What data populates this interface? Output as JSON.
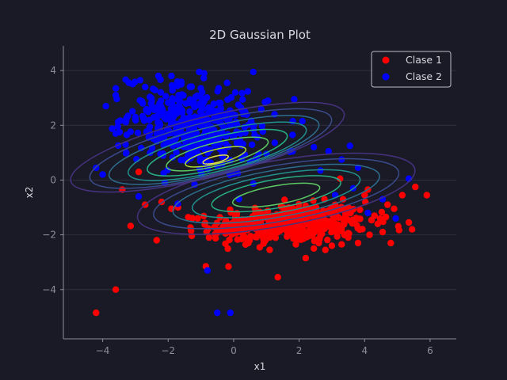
{
  "chart_data": {
    "type": "scatter",
    "title": "2D Gaussian Plot",
    "xlabel": "x1",
    "ylabel": "x2",
    "xlim": [
      -5.2,
      6.8
    ],
    "ylim": [
      -5.8,
      4.9
    ],
    "xticks": [
      -4,
      -2,
      0,
      2,
      4,
      6
    ],
    "yticks": [
      -4,
      -2,
      0,
      2,
      4
    ],
    "xtick_labels": [
      "−4",
      "−2",
      "0",
      "2",
      "4",
      "6"
    ],
    "ytick_labels": [
      "−4",
      "−2",
      "0",
      "2",
      "4"
    ],
    "grid": "horizontal",
    "legend_position": "top-right",
    "colors": {
      "background": "#1a1a26",
      "grid": "#2e2e40",
      "spine": "#8e8e9a",
      "clase1": "#ff0000",
      "clase2": "#0000ff"
    },
    "series": [
      {
        "name": "Clase 1",
        "color": "#ff0000",
        "mean": [
          1.7,
          -1.6
        ],
        "points": [
          [
            -4.2,
            -4.85
          ],
          [
            -3.6,
            -4.0
          ],
          [
            -3.4,
            -0.35
          ],
          [
            -2.9,
            0.3
          ],
          [
            -2.7,
            -0.9
          ],
          [
            -2.35,
            -2.2
          ],
          [
            -0.85,
            -3.15
          ],
          [
            1.35,
            -3.55
          ],
          [
            2.2,
            -2.85
          ],
          [
            3.25,
            0.05
          ],
          [
            4.0,
            -0.55
          ],
          [
            4.15,
            -2.0
          ],
          [
            4.4,
            -1.6
          ],
          [
            4.8,
            -2.3
          ],
          [
            4.9,
            -1.05
          ],
          [
            5.15,
            -0.55
          ],
          [
            5.35,
            -1.55
          ],
          [
            5.55,
            -0.25
          ],
          [
            5.45,
            -1.8
          ],
          [
            5.9,
            -0.55
          ],
          [
            4.55,
            -1.9
          ],
          [
            3.8,
            -2.3
          ],
          [
            3.5,
            -2.1
          ],
          [
            3.0,
            -2.4
          ],
          [
            2.6,
            -2.3
          ],
          [
            1.1,
            -2.55
          ],
          [
            0.45,
            -2.3
          ],
          [
            -0.75,
            -2.1
          ],
          [
            -1.3,
            -1.85
          ],
          [
            -1.7,
            -1.0
          ],
          [
            -2.2,
            -0.8
          ],
          [
            -1.9,
            -1.05
          ],
          [
            4.1,
            -0.35
          ],
          [
            4.65,
            -1.35
          ],
          [
            4.3,
            -1.3
          ],
          [
            1.9,
            -2.35
          ],
          [
            2.45,
            -2.5
          ],
          [
            3.3,
            -2.35
          ],
          [
            0.1,
            -1.8
          ],
          [
            -0.25,
            -1.95
          ],
          [
            -1.1,
            -1.4
          ],
          [
            4.7,
            -0.9
          ]
        ]
      },
      {
        "name": "Clase 2",
        "color": "#0000ff",
        "mean": [
          -1.2,
          1.9
        ],
        "points": [
          [
            -2.3,
            3.8
          ],
          [
            -1.9,
            3.8
          ],
          [
            -1.05,
            3.95
          ],
          [
            -0.9,
            3.9
          ],
          [
            0.6,
            3.95
          ],
          [
            -3.2,
            3.55
          ],
          [
            -3.6,
            3.1
          ],
          [
            -3.9,
            2.7
          ],
          [
            -4.2,
            0.45
          ],
          [
            -4.0,
            0.2
          ],
          [
            -3.6,
            1.7
          ],
          [
            -3.3,
            1.3
          ],
          [
            -0.5,
            -4.85
          ],
          [
            -0.1,
            -4.85
          ],
          [
            -0.8,
            -3.3
          ],
          [
            1.85,
            2.95
          ],
          [
            2.1,
            2.15
          ],
          [
            2.45,
            1.2
          ],
          [
            2.9,
            1.05
          ],
          [
            3.3,
            0.75
          ],
          [
            3.55,
            1.25
          ],
          [
            3.8,
            0.45
          ],
          [
            4.55,
            -0.7
          ],
          [
            4.95,
            -1.4
          ],
          [
            5.35,
            0.05
          ],
          [
            3.65,
            -0.3
          ],
          [
            4.1,
            -1.2
          ],
          [
            1.05,
            2.9
          ],
          [
            1.25,
            2.4
          ],
          [
            0.35,
            2.5
          ],
          [
            -0.2,
            3.55
          ],
          [
            -1.6,
            3.5
          ],
          [
            -2.7,
            3.4
          ],
          [
            -2.5,
            2.9
          ],
          [
            -2.9,
            -0.6
          ],
          [
            -2.1,
            -0.1
          ],
          [
            1.8,
            1.65
          ],
          [
            2.65,
            0.35
          ],
          [
            3.1,
            -0.55
          ],
          [
            -3.0,
            2.3
          ],
          [
            -2.55,
            1.0
          ],
          [
            0.05,
            3.2
          ]
        ]
      }
    ],
    "contours": [
      {
        "cx": -0.8,
        "cy": 1.2,
        "rx": 4.3,
        "ry": 1.1,
        "angle": -14,
        "level": 1
      },
      {
        "cx": -0.7,
        "cy": 1.15,
        "rx": 3.8,
        "ry": 0.98,
        "angle": -14,
        "level": 2
      },
      {
        "cx": -0.6,
        "cy": 1.1,
        "rx": 3.3,
        "ry": 0.85,
        "angle": -14,
        "level": 3
      },
      {
        "cx": -0.5,
        "cy": 1.05,
        "rx": 2.8,
        "ry": 0.72,
        "angle": -14,
        "level": 4
      },
      {
        "cx": -0.5,
        "cy": 1.0,
        "rx": 2.2,
        "ry": 0.58,
        "angle": -14,
        "level": 5
      },
      {
        "cx": -0.5,
        "cy": 0.95,
        "rx": 1.6,
        "ry": 0.42,
        "angle": -14,
        "level": 6
      },
      {
        "cx": -0.55,
        "cy": 0.85,
        "rx": 0.95,
        "ry": 0.26,
        "angle": -14,
        "level": 7
      },
      {
        "cx": -0.55,
        "cy": 0.75,
        "rx": 0.4,
        "ry": 0.12,
        "angle": -14,
        "level": 8
      },
      {
        "cx": 1.3,
        "cy": -0.5,
        "rx": 4.3,
        "ry": 1.2,
        "angle": -10,
        "level": 1
      },
      {
        "cx": 1.3,
        "cy": -0.5,
        "rx": 3.8,
        "ry": 1.02,
        "angle": -10,
        "level": 2
      },
      {
        "cx": 1.3,
        "cy": -0.5,
        "rx": 3.2,
        "ry": 0.86,
        "angle": -10,
        "level": 3
      },
      {
        "cx": 1.3,
        "cy": -0.5,
        "rx": 2.6,
        "ry": 0.7,
        "angle": -10,
        "level": 4
      },
      {
        "cx": 1.3,
        "cy": -0.5,
        "rx": 2.0,
        "ry": 0.52,
        "angle": -10,
        "level": 5
      },
      {
        "cx": 1.3,
        "cy": -0.55,
        "rx": 1.35,
        "ry": 0.34,
        "angle": -10,
        "level": 6
      }
    ]
  }
}
